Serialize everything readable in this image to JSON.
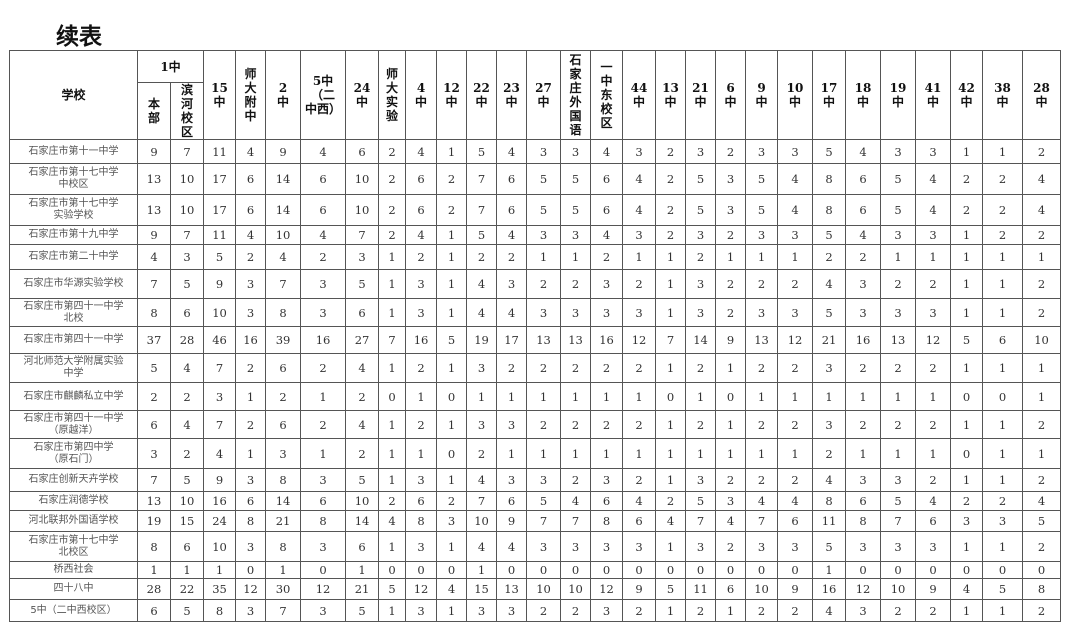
{
  "title": "续表",
  "table": {
    "school_header": "学校",
    "group_header": "1中",
    "group_columns": [
      "本\n部",
      "滨\n河\n校\n区"
    ],
    "columns": [
      "15\n中",
      "师\n大\n附\n中",
      "2\n中",
      "5中\n（二\n中西）",
      "24\n中",
      "师\n大\n实\n验",
      "4\n中",
      "12\n中",
      "22\n中",
      "23\n中",
      "27\n中",
      "石\n家\n庄\n外\n国\n语",
      "一\n中\n东\n校\n区",
      "44\n中",
      "13\n中",
      "21\n中",
      "6\n中",
      "9\n中",
      "10\n中",
      "17\n中",
      "18\n中",
      "19\n中",
      "41\n中",
      "42\n中",
      "38\n中",
      "28\n中"
    ],
    "rows": [
      {
        "school": "石家庄市第十一中学",
        "values": [
          9,
          7,
          11,
          4,
          9,
          4,
          6,
          2,
          4,
          1,
          5,
          4,
          3,
          3,
          4,
          3,
          2,
          3,
          2,
          3,
          3,
          5,
          4,
          3,
          3,
          1,
          1,
          2
        ]
      },
      {
        "school": "石家庄市第十七中学\n中校区",
        "values": [
          13,
          10,
          17,
          6,
          14,
          6,
          10,
          2,
          6,
          2,
          7,
          6,
          5,
          5,
          6,
          4,
          2,
          5,
          3,
          5,
          4,
          8,
          6,
          5,
          4,
          2,
          2,
          4
        ]
      },
      {
        "school": "石家庄市第十七中学\n实验学校",
        "values": [
          13,
          10,
          17,
          6,
          14,
          6,
          10,
          2,
          6,
          2,
          7,
          6,
          5,
          5,
          6,
          4,
          2,
          5,
          3,
          5,
          4,
          8,
          6,
          5,
          4,
          2,
          2,
          4
        ]
      },
      {
        "school": "石家庄市第十九中学",
        "values": [
          9,
          7,
          11,
          4,
          10,
          4,
          7,
          2,
          4,
          1,
          5,
          4,
          3,
          3,
          4,
          3,
          2,
          3,
          2,
          3,
          3,
          5,
          4,
          3,
          3,
          1,
          2,
          2
        ]
      },
      {
        "school": "石家庄市第二十中学",
        "values": [
          4,
          3,
          5,
          2,
          4,
          2,
          3,
          1,
          2,
          1,
          2,
          2,
          1,
          1,
          2,
          1,
          1,
          2,
          1,
          1,
          1,
          2,
          2,
          1,
          1,
          1,
          1,
          1
        ]
      },
      {
        "school": "石家庄市华源实验学校",
        "values": [
          7,
          5,
          9,
          3,
          7,
          3,
          5,
          1,
          3,
          1,
          4,
          3,
          2,
          2,
          3,
          2,
          1,
          3,
          2,
          2,
          2,
          4,
          3,
          2,
          2,
          1,
          1,
          2
        ]
      },
      {
        "school": "石家庄市第四十一中学\n北校",
        "values": [
          8,
          6,
          10,
          3,
          8,
          3,
          6,
          1,
          3,
          1,
          4,
          4,
          3,
          3,
          3,
          3,
          1,
          3,
          2,
          3,
          3,
          5,
          3,
          3,
          3,
          1,
          1,
          2
        ]
      },
      {
        "school": "石家庄市第四十一中学",
        "values": [
          37,
          28,
          46,
          16,
          39,
          16,
          27,
          7,
          16,
          5,
          19,
          17,
          13,
          13,
          16,
          12,
          7,
          14,
          9,
          13,
          12,
          21,
          16,
          13,
          12,
          5,
          6,
          10
        ]
      },
      {
        "school": "河北师范大学附属实验\n中学",
        "values": [
          5,
          4,
          7,
          2,
          6,
          2,
          4,
          1,
          2,
          1,
          3,
          2,
          2,
          2,
          2,
          2,
          1,
          2,
          1,
          2,
          2,
          3,
          2,
          2,
          2,
          1,
          1,
          1
        ]
      },
      {
        "school": "石家庄市麒麟私立中学",
        "values": [
          2,
          2,
          3,
          1,
          2,
          1,
          2,
          0,
          1,
          0,
          1,
          1,
          1,
          1,
          1,
          1,
          0,
          1,
          0,
          1,
          1,
          1,
          1,
          1,
          1,
          0,
          0,
          1
        ]
      },
      {
        "school": "石家庄市第四十一中学\n（原越洋）",
        "values": [
          6,
          4,
          7,
          2,
          6,
          2,
          4,
          1,
          2,
          1,
          3,
          3,
          2,
          2,
          2,
          2,
          1,
          2,
          1,
          2,
          2,
          3,
          2,
          2,
          2,
          1,
          1,
          2
        ]
      },
      {
        "school": "石家庄市第四中学\n（原石门）",
        "values": [
          3,
          2,
          4,
          1,
          3,
          1,
          2,
          1,
          1,
          0,
          2,
          1,
          1,
          1,
          1,
          1,
          1,
          1,
          1,
          1,
          1,
          2,
          1,
          1,
          1,
          0,
          1,
          1
        ]
      },
      {
        "school": "石家庄创新天卉学校",
        "values": [
          7,
          5,
          9,
          3,
          8,
          3,
          5,
          1,
          3,
          1,
          4,
          3,
          3,
          2,
          3,
          2,
          1,
          3,
          2,
          2,
          2,
          4,
          3,
          3,
          2,
          1,
          1,
          2
        ]
      },
      {
        "school": "石家庄润德学校",
        "values": [
          13,
          10,
          16,
          6,
          14,
          6,
          10,
          2,
          6,
          2,
          7,
          6,
          5,
          4,
          6,
          4,
          2,
          5,
          3,
          4,
          4,
          8,
          6,
          5,
          4,
          2,
          2,
          4
        ]
      },
      {
        "school": "河北联邦外国语学校",
        "values": [
          19,
          15,
          24,
          8,
          21,
          8,
          14,
          4,
          8,
          3,
          10,
          9,
          7,
          7,
          8,
          6,
          4,
          7,
          4,
          7,
          6,
          11,
          8,
          7,
          6,
          3,
          3,
          5
        ]
      },
      {
        "school": "石家庄市第十七中学\n北校区",
        "values": [
          8,
          6,
          10,
          3,
          8,
          3,
          6,
          1,
          3,
          1,
          4,
          4,
          3,
          3,
          3,
          3,
          1,
          3,
          2,
          3,
          3,
          5,
          3,
          3,
          3,
          1,
          1,
          2
        ]
      },
      {
        "school": "桥西社会",
        "values": [
          1,
          1,
          1,
          0,
          1,
          0,
          1,
          0,
          0,
          0,
          1,
          0,
          0,
          0,
          0,
          0,
          0,
          0,
          0,
          0,
          0,
          1,
          0,
          0,
          0,
          0,
          0,
          0
        ]
      },
      {
        "school": "四十八中",
        "values": [
          28,
          22,
          35,
          12,
          30,
          12,
          21,
          5,
          12,
          4,
          15,
          13,
          10,
          10,
          12,
          9,
          5,
          11,
          6,
          10,
          9,
          16,
          12,
          10,
          9,
          4,
          5,
          8
        ]
      },
      {
        "school": "5中（二中西校区）",
        "values": [
          6,
          5,
          8,
          3,
          7,
          3,
          5,
          1,
          3,
          1,
          3,
          3,
          2,
          2,
          3,
          2,
          1,
          2,
          1,
          2,
          2,
          4,
          3,
          2,
          2,
          1,
          1,
          2
        ]
      }
    ]
  }
}
